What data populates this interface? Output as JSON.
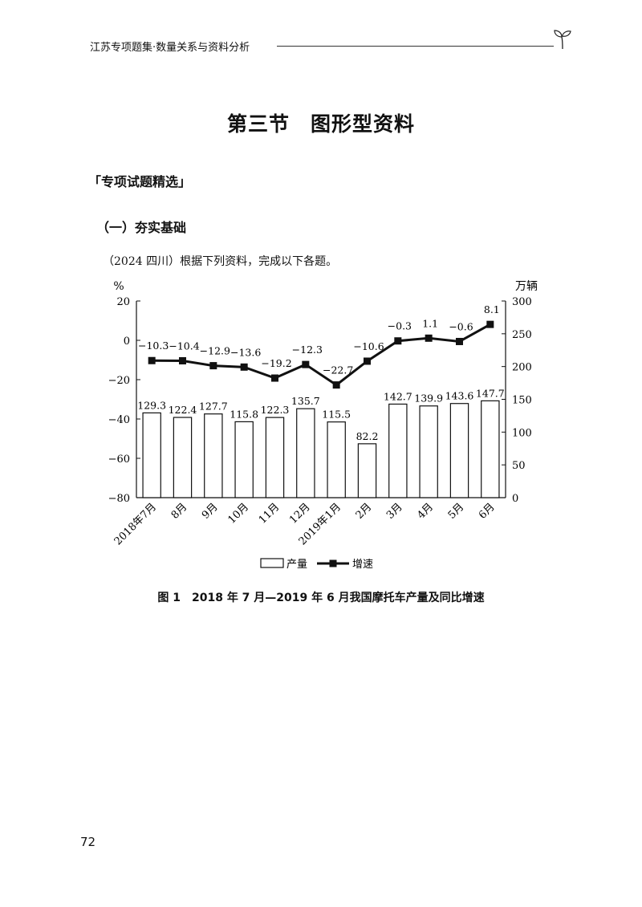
{
  "header": {
    "text": "江苏专项题集·数量关系与资料分析"
  },
  "title": "第三节　图形型资料",
  "section": "「专项试题精选」",
  "subsection": "（一）夯实基础",
  "intro": "（2024 四川）根据下列资料，完成以下各题。",
  "caption": "图 1　2018 年 7 月—2019 年 6 月我国摩托车产量及同比增速",
  "page_number": "72",
  "chart_data": {
    "type": "bar",
    "categories": [
      "2018年7月",
      "8月",
      "9月",
      "10月",
      "11月",
      "12月",
      "2019年1月",
      "2月",
      "3月",
      "4月",
      "5月",
      "6月"
    ],
    "series": [
      {
        "name": "产量",
        "type": "bar",
        "axis": "right",
        "values": [
          129.3,
          122.4,
          127.7,
          115.8,
          122.3,
          135.7,
          115.5,
          82.2,
          142.7,
          139.9,
          143.6,
          147.7
        ]
      },
      {
        "name": "增速",
        "type": "line",
        "axis": "left",
        "values": [
          -10.3,
          -10.4,
          -12.9,
          -13.6,
          -19.2,
          -12.3,
          -22.7,
          -10.6,
          -0.3,
          1.1,
          -0.6,
          8.1
        ]
      }
    ],
    "left_axis": {
      "label": "%",
      "range": [
        -80,
        20
      ],
      "ticks": [
        "20",
        "0",
        "−20",
        "−40",
        "−60",
        "−80"
      ]
    },
    "right_axis": {
      "label": "万辆",
      "range": [
        0,
        300
      ],
      "ticks": [
        "300",
        "250",
        "200",
        "150",
        "100",
        "50",
        "0"
      ]
    },
    "line_labels": [
      "−10.3",
      "−10.4",
      "−12.9",
      "−13.6",
      "−19.2",
      "−12.3",
      "−22.7",
      "−10.6",
      "−0.3",
      "1.1",
      "−0.6",
      "8.1"
    ],
    "bar_labels": [
      "129.3",
      "122.4",
      "127.7",
      "115.8",
      "122.3",
      "135.7",
      "115.5",
      "82.2",
      "142.7",
      "139.9",
      "143.6",
      "147.7"
    ],
    "legend_position": "bottom",
    "grid": false
  }
}
